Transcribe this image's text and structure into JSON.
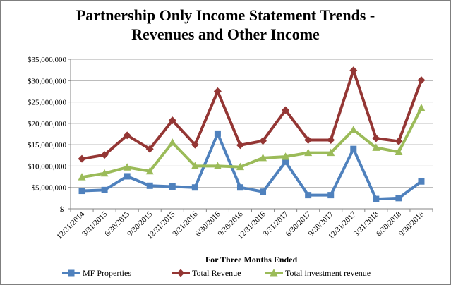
{
  "chart_data": {
    "type": "line",
    "title_lines": [
      "Partnership Only Income Statement Trends -",
      "Revenues and Other Income"
    ],
    "xlabel": "For Three Months  Ended",
    "ylabel": "",
    "ylim": [
      0,
      35000000
    ],
    "y_ticks": [
      0,
      5000000,
      10000000,
      15000000,
      20000000,
      25000000,
      30000000,
      35000000
    ],
    "y_tick_labels": [
      "$-",
      "$5,000,000",
      "$10,000,000",
      "$15,000,000",
      "$20,000,000",
      "$25,000,000",
      "$30,000,000",
      "$35,000,000"
    ],
    "grid": true,
    "legend_position": "bottom",
    "categories": [
      "12/31/2014",
      "3/31/2015",
      "6/30/2015",
      "9/30/2015",
      "12/31/2015",
      "3/31/2016",
      "6/30/2016",
      "9/30/2016",
      "12/31/2016",
      "3/31/2017",
      "6/30/2017",
      "9/30/2017",
      "12/31/2017",
      "3/31/2018",
      "6/30/2018",
      "9/30/2018"
    ],
    "series": [
      {
        "name": "MF Properties",
        "color": "#4f81bd",
        "marker": "square",
        "values": [
          4200000,
          4400000,
          7600000,
          5400000,
          5200000,
          5000000,
          17600000,
          5000000,
          4000000,
          11000000,
          3200000,
          3200000,
          14000000,
          2300000,
          2500000,
          6400000
        ]
      },
      {
        "name": "Total Revenue",
        "color": "#943634",
        "marker": "diamond",
        "values": [
          11700000,
          12600000,
          17200000,
          14000000,
          20700000,
          15000000,
          27500000,
          14900000,
          15900000,
          23100000,
          16100000,
          16100000,
          32400000,
          16500000,
          15800000,
          30100000
        ]
      },
      {
        "name": "Total investment revenue",
        "color": "#9bbb59",
        "marker": "triangle",
        "values": [
          7400000,
          8300000,
          9700000,
          8800000,
          15500000,
          10000000,
          10000000,
          9800000,
          11900000,
          12200000,
          13100000,
          13100000,
          18500000,
          14300000,
          13300000,
          23600000
        ]
      }
    ]
  }
}
